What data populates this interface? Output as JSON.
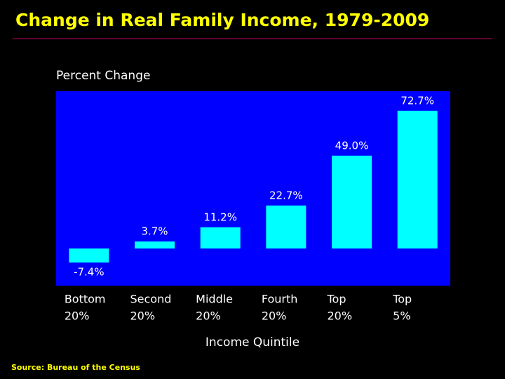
{
  "chart_data": {
    "type": "bar",
    "title": "Change in Real Family Income, 1979-2009",
    "y_label": "Percent Change",
    "x_label": "Income Quintile",
    "source": "Source: Bureau of the Census",
    "categories": [
      [
        "Bottom",
        "20%"
      ],
      [
        "Second",
        "20%"
      ],
      [
        "Middle",
        "20%"
      ],
      [
        "Fourth",
        "20%"
      ],
      [
        "Top",
        "20%"
      ],
      [
        "Top",
        "5%"
      ]
    ],
    "values": [
      -7.4,
      3.7,
      11.2,
      22.7,
      49.0,
      72.7
    ],
    "value_labels": [
      "-7.4%",
      "3.7%",
      "11.2%",
      "22.7%",
      "49.0%",
      "72.7%"
    ],
    "color": "#00ffff",
    "background": "#0000ff",
    "ylim": [
      -19.6,
      83
    ]
  }
}
